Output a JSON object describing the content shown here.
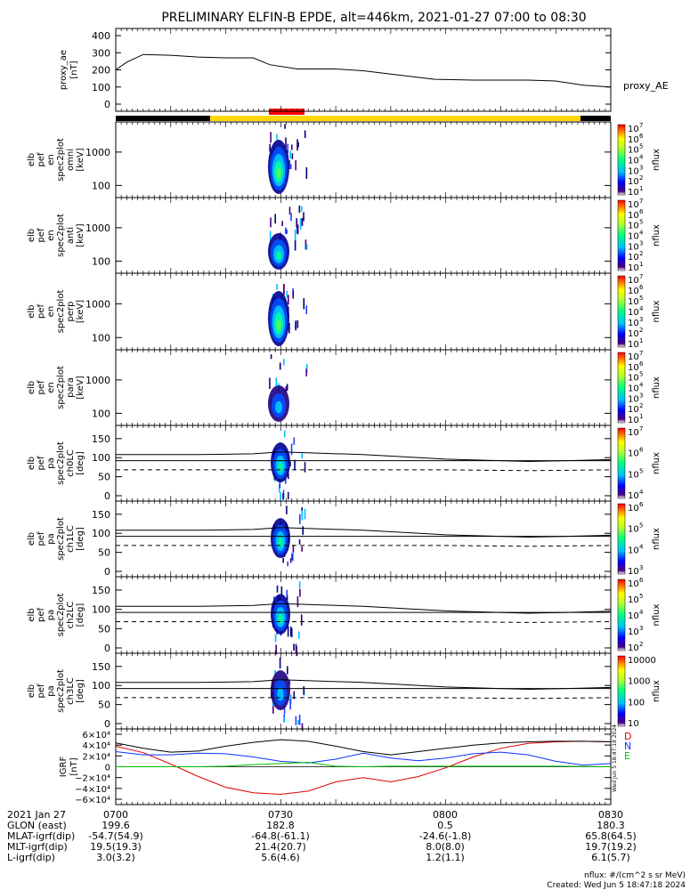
{
  "title": "PRELIMINARY ELFIN-B EPDE, alt=446km, 2021-01-27 07:00 to 08:30",
  "colors": {
    "coverage_black": "#000000",
    "coverage_yellow": "#ffd700",
    "coverage_red": "#ff0000",
    "mag_D": "#e00000",
    "mag_N": "#1030ff",
    "mag_E": "#00c000",
    "mag_total": "#000000"
  },
  "chart_data": [
    {
      "type": "line",
      "ylabel_lines": [
        "proxy_ae",
        "[nT]"
      ],
      "yticks": [
        "400",
        "300",
        "200",
        "100",
        "0"
      ],
      "ylim": [
        0,
        400
      ],
      "series": [
        {
          "name": "proxy_AE",
          "x": [
            "07:00",
            "07:02",
            "07:05",
            "07:10",
            "07:15",
            "07:20",
            "07:25",
            "07:28",
            "07:33",
            "07:40",
            "07:45",
            "07:50",
            "07:58",
            "08:05",
            "08:10",
            "08:15",
            "08:20",
            "08:25",
            "08:30"
          ],
          "values": [
            200,
            245,
            290,
            285,
            275,
            270,
            270,
            230,
            205,
            205,
            195,
            175,
            145,
            140,
            140,
            140,
            135,
            110,
            100
          ]
        }
      ]
    },
    {
      "type": "heatmap",
      "ylabel_lines": [
        "elb",
        "pef",
        "en",
        "spec2plot",
        "omni",
        "[keV]"
      ],
      "yticks": [
        "1000",
        "100"
      ],
      "yscale": "log",
      "zlabel": "nflux",
      "ztick_exponents": [
        "7",
        "6",
        "5",
        "4",
        "3",
        "2",
        "1"
      ]
    },
    {
      "type": "heatmap",
      "ylabel_lines": [
        "elb",
        "pef",
        "en",
        "spec2plot",
        "anti",
        "[keV]"
      ],
      "yticks": [
        "1000",
        "100"
      ],
      "yscale": "log",
      "zlabel": "nflux",
      "ztick_exponents": [
        "7",
        "6",
        "5",
        "4",
        "3",
        "2",
        "1"
      ]
    },
    {
      "type": "heatmap",
      "ylabel_lines": [
        "elb",
        "pef",
        "en",
        "spec2plot",
        "perp",
        "[keV]"
      ],
      "yticks": [
        "1000",
        "100"
      ],
      "yscale": "log",
      "zlabel": "nflux",
      "ztick_exponents": [
        "7",
        "6",
        "5",
        "4",
        "3",
        "2",
        "1"
      ]
    },
    {
      "type": "heatmap",
      "ylabel_lines": [
        "elb",
        "pef",
        "en",
        "spec2plot",
        "para",
        "[keV]"
      ],
      "yticks": [
        "1000",
        "100"
      ],
      "yscale": "log",
      "zlabel": "nflux",
      "ztick_exponents": [
        "7",
        "6",
        "5",
        "4",
        "3",
        "2",
        "1"
      ]
    },
    {
      "type": "heatmap",
      "ylabel_lines": [
        "elb",
        "pef",
        "pa",
        "spec2plot",
        "ch0LC",
        "[deg]"
      ],
      "yticks": [
        "150",
        "100",
        "50",
        "0"
      ],
      "ylim": [
        0,
        180
      ],
      "zlabel": "nflux",
      "ztick_exponents": [
        "7",
        "6",
        "5",
        "4"
      ],
      "lines": {
        "solid": [
          108,
          92
        ],
        "dashed": [
          68
        ]
      }
    },
    {
      "type": "heatmap",
      "ylabel_lines": [
        "elb",
        "pef",
        "pa",
        "spec2plot",
        "ch1LC",
        "[deg]"
      ],
      "yticks": [
        "150",
        "100",
        "50",
        "0"
      ],
      "ylim": [
        0,
        180
      ],
      "zlabel": "nflux",
      "ztick_exponents": [
        "6",
        "5",
        "4",
        "3"
      ],
      "lines": {
        "solid": [
          108,
          92
        ],
        "dashed": [
          68
        ]
      }
    },
    {
      "type": "heatmap",
      "ylabel_lines": [
        "elb",
        "pef",
        "pa",
        "spec2plot",
        "ch2LC",
        "[deg]"
      ],
      "yticks": [
        "150",
        "100",
        "50",
        "0"
      ],
      "ylim": [
        0,
        180
      ],
      "zlabel": "nflux",
      "ztick_exponents": [
        "6",
        "5",
        "4",
        "3",
        "2"
      ],
      "lines": {
        "solid": [
          108,
          92
        ],
        "dashed": [
          68
        ]
      }
    },
    {
      "type": "heatmap",
      "ylabel_lines": [
        "elb",
        "pef",
        "pa",
        "spec2plot",
        "ch3LC",
        "[deg]"
      ],
      "yticks": [
        "150",
        "100",
        "50",
        "0"
      ],
      "ylim": [
        0,
        180
      ],
      "zlabel": "nflux",
      "zticks": [
        "10000",
        "1000",
        "100",
        "10"
      ],
      "lines": {
        "solid": [
          108,
          92
        ],
        "dashed": [
          68
        ]
      }
    },
    {
      "type": "line",
      "ylabel_lines": [
        "IGRF",
        "[nT]"
      ],
      "yticks": [
        "6×10⁴",
        "4×10⁴",
        "2×10⁴",
        "0",
        "−2×10⁴",
        "−4×10⁴",
        "−6×10⁴"
      ],
      "ylim": [
        -60000,
        60000
      ],
      "legend": [
        "D",
        "N",
        "E"
      ],
      "series": [
        {
          "name": "D",
          "x": [
            0,
            5,
            10,
            15,
            20,
            25,
            30,
            35,
            40,
            45,
            50,
            55,
            60,
            65,
            70,
            75,
            80,
            85,
            90
          ],
          "values": [
            38000,
            26000,
            5000,
            -18000,
            -38000,
            -48000,
            -51000,
            -45000,
            -28000,
            -20000,
            -28000,
            -18000,
            -2000,
            18000,
            34000,
            43000,
            46000,
            47000,
            46000
          ]
        },
        {
          "name": "N",
          "x": [
            0,
            5,
            10,
            15,
            20,
            25,
            30,
            35,
            40,
            45,
            50,
            55,
            60,
            65,
            70,
            75,
            80,
            85,
            90
          ],
          "values": [
            28000,
            22000,
            22000,
            25000,
            24000,
            18000,
            10000,
            7000,
            14000,
            25000,
            16000,
            11000,
            16000,
            24000,
            27000,
            22000,
            10000,
            3000,
            6000
          ]
        },
        {
          "name": "E",
          "x": [
            0,
            5,
            10,
            15,
            20,
            25,
            30,
            35,
            40,
            45,
            50,
            55,
            60,
            65,
            70,
            75,
            80,
            85,
            90
          ],
          "values": [
            0,
            0,
            0,
            0,
            1000,
            4000,
            6000,
            8000,
            1000,
            0,
            1000,
            1000,
            1000,
            1000,
            1000,
            1000,
            1000,
            500,
            0
          ]
        },
        {
          "name": "total",
          "x": [
            0,
            5,
            10,
            15,
            20,
            25,
            30,
            35,
            40,
            45,
            50,
            55,
            60,
            65,
            70,
            75,
            80,
            85,
            90
          ],
          "values": [
            44000,
            34000,
            27000,
            29000,
            38000,
            45000,
            50000,
            47000,
            38000,
            28000,
            22000,
            28000,
            34000,
            40000,
            44000,
            46000,
            47000,
            47000,
            46000
          ]
        }
      ]
    }
  ],
  "proxy_legend": "proxy_AE",
  "orbit": {
    "rows": [
      {
        "label": "2021 Jan 27",
        "values": [
          "0700",
          "0730",
          "0800",
          "0830"
        ]
      },
      {
        "label": "GLON (east)",
        "values": [
          "199.6",
          "182.8",
          "0.5",
          "180.3"
        ]
      },
      {
        "label": "MLAT-igrf(dip)",
        "values": [
          "-54.7(54.9)",
          "-64.8(-61.1)",
          "-24.6(-1.8)",
          "65.8(64.5)"
        ]
      },
      {
        "label": "MLT-igrf(dip)",
        "values": [
          "19.5(19.3)",
          "21.4(20.7)",
          "8.0(8.0)",
          "19.7(19.2)"
        ]
      },
      {
        "label": "L-igrf(dip)",
        "values": [
          "3.0(3.2)",
          "5.6(4.6)",
          "1.2(1.1)",
          "6.1(5.7)"
        ]
      }
    ]
  },
  "footer": {
    "units": "nflux: #/(cm^2 s sr MeV)",
    "created": "Created: Wed Jun  5 18:47:18 2024",
    "vertical_stamp": "Wed Jun  5 18:47:18 2024"
  }
}
